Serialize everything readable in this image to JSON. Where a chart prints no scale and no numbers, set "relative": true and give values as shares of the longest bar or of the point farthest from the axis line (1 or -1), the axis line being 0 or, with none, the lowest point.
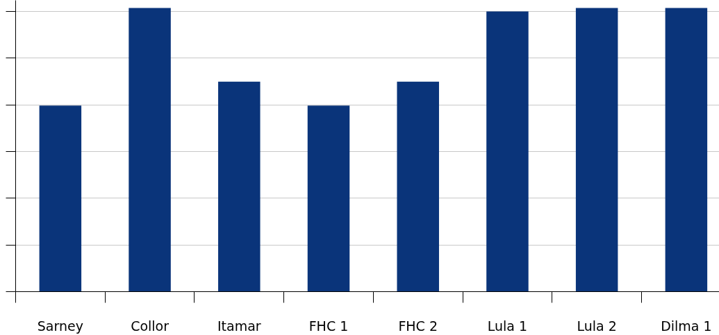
{
  "chart_data": {
    "type": "bar",
    "relative": true,
    "categories": [
      "Sarney",
      "Collor",
      "Itamar",
      "FHC 1",
      "FHC 2",
      "Lula 1",
      "Lula 2",
      "Dilma 1"
    ],
    "values": [
      0.656,
      1,
      0.74,
      0.656,
      0.74,
      0.988,
      1,
      1
    ],
    "color": "#0a347a",
    "grid": "y"
  }
}
